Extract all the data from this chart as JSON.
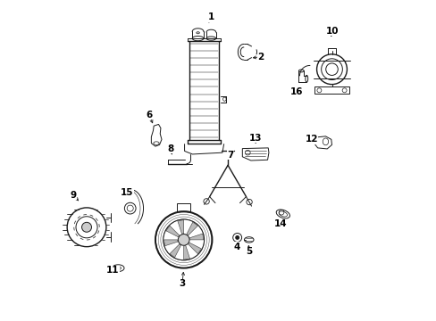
{
  "bg_color": "#ffffff",
  "line_color": "#1a1a1a",
  "figsize": [
    4.89,
    3.6
  ],
  "dpi": 100,
  "label_positions": {
    "1": [
      0.478,
      0.955,
      0.465,
      0.93
    ],
    "2": [
      0.635,
      0.83,
      0.6,
      0.825
    ],
    "3": [
      0.385,
      0.108,
      0.39,
      0.155
    ],
    "4": [
      0.558,
      0.225,
      0.562,
      0.25
    ],
    "5": [
      0.596,
      0.21,
      0.596,
      0.24
    ],
    "6": [
      0.28,
      0.645,
      0.295,
      0.61
    ],
    "7": [
      0.538,
      0.518,
      0.528,
      0.495
    ],
    "8": [
      0.348,
      0.538,
      0.355,
      0.51
    ],
    "9": [
      0.04,
      0.39,
      0.062,
      0.365
    ],
    "10": [
      0.862,
      0.912,
      0.855,
      0.885
    ],
    "11": [
      0.165,
      0.15,
      0.178,
      0.158
    ],
    "12": [
      0.795,
      0.568,
      0.818,
      0.558
    ],
    "13": [
      0.618,
      0.572,
      0.618,
      0.545
    ],
    "14": [
      0.698,
      0.298,
      0.7,
      0.322
    ],
    "15": [
      0.21,
      0.398,
      0.22,
      0.375
    ],
    "16": [
      0.748,
      0.718,
      0.762,
      0.738
    ]
  }
}
